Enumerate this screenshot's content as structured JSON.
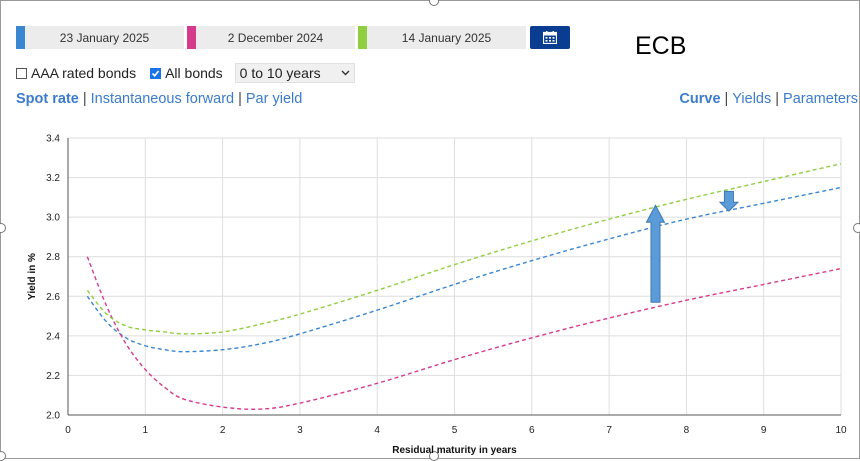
{
  "controls": {
    "dates": [
      {
        "label": "23 January 2025",
        "color": "#3a86d1"
      },
      {
        "label": "2 December 2024",
        "color": "#d63a8c"
      },
      {
        "label": "14 January 2025",
        "color": "#8fce3f"
      }
    ],
    "calendar_icon": "calendar-icon",
    "issuer": "ECB",
    "aaa_label": "AAA rated bonds",
    "aaa_checked": false,
    "all_label": "All bonds",
    "all_checked": true,
    "range_selected": "0 to 10 years"
  },
  "nav": {
    "left": [
      {
        "label": "Spot rate",
        "active": true
      },
      {
        "label": "Instantaneous forward",
        "active": false
      },
      {
        "label": "Par yield",
        "active": false
      }
    ],
    "right": [
      {
        "label": "Curve",
        "active": true
      },
      {
        "label": "Yields",
        "active": false
      },
      {
        "label": "Parameters",
        "active": false
      }
    ]
  },
  "chart_data": {
    "type": "line",
    "xlabel": "Residual maturity in years",
    "ylabel": "Yield in %",
    "xlim": [
      0,
      10
    ],
    "ylim": [
      2.0,
      3.4
    ],
    "xticks": [
      "0",
      "1",
      "2",
      "3",
      "4",
      "5",
      "6",
      "7",
      "8",
      "9",
      "10"
    ],
    "yticks": [
      "2.0",
      "2.2",
      "2.4",
      "2.6",
      "2.8",
      "3.0",
      "3.2",
      "3.4"
    ],
    "grid": true,
    "legend": "none",
    "series": [
      {
        "color": "#3a86d1",
        "style": "dashed",
        "x": [
          0.25,
          0.5,
          0.75,
          1,
          1.25,
          1.5,
          2,
          2.5,
          3,
          4,
          5,
          6,
          7,
          8,
          9,
          10
        ],
        "y": [
          2.6,
          2.47,
          2.39,
          2.35,
          2.33,
          2.32,
          2.33,
          2.36,
          2.41,
          2.53,
          2.66,
          2.78,
          2.89,
          2.99,
          3.07,
          3.15
        ]
      },
      {
        "color": "#d63a8c",
        "style": "dashed",
        "x": [
          0.25,
          0.5,
          0.75,
          1,
          1.25,
          1.5,
          2,
          2.5,
          3,
          4,
          5,
          6,
          7,
          8,
          9,
          10
        ],
        "y": [
          2.8,
          2.55,
          2.36,
          2.23,
          2.14,
          2.08,
          2.04,
          2.03,
          2.06,
          2.16,
          2.28,
          2.39,
          2.49,
          2.58,
          2.66,
          2.74
        ]
      },
      {
        "color": "#8fce3f",
        "style": "dashed",
        "x": [
          0.25,
          0.5,
          0.75,
          1,
          1.25,
          1.5,
          2,
          2.5,
          3,
          4,
          5,
          6,
          7,
          8,
          9,
          10
        ],
        "y": [
          2.63,
          2.51,
          2.45,
          2.43,
          2.42,
          2.41,
          2.42,
          2.46,
          2.51,
          2.63,
          2.76,
          2.88,
          2.99,
          3.09,
          3.18,
          3.27
        ]
      }
    ],
    "annotations": [
      {
        "type": "arrow",
        "direction": "up",
        "x": 7.6,
        "y_from": 2.57,
        "y_to": 3.06,
        "color": "#5a9bd8"
      },
      {
        "type": "arrow",
        "direction": "down",
        "x": 8.55,
        "y_from": 3.13,
        "y_to": 3.03,
        "color": "#5a9bd8"
      }
    ]
  }
}
